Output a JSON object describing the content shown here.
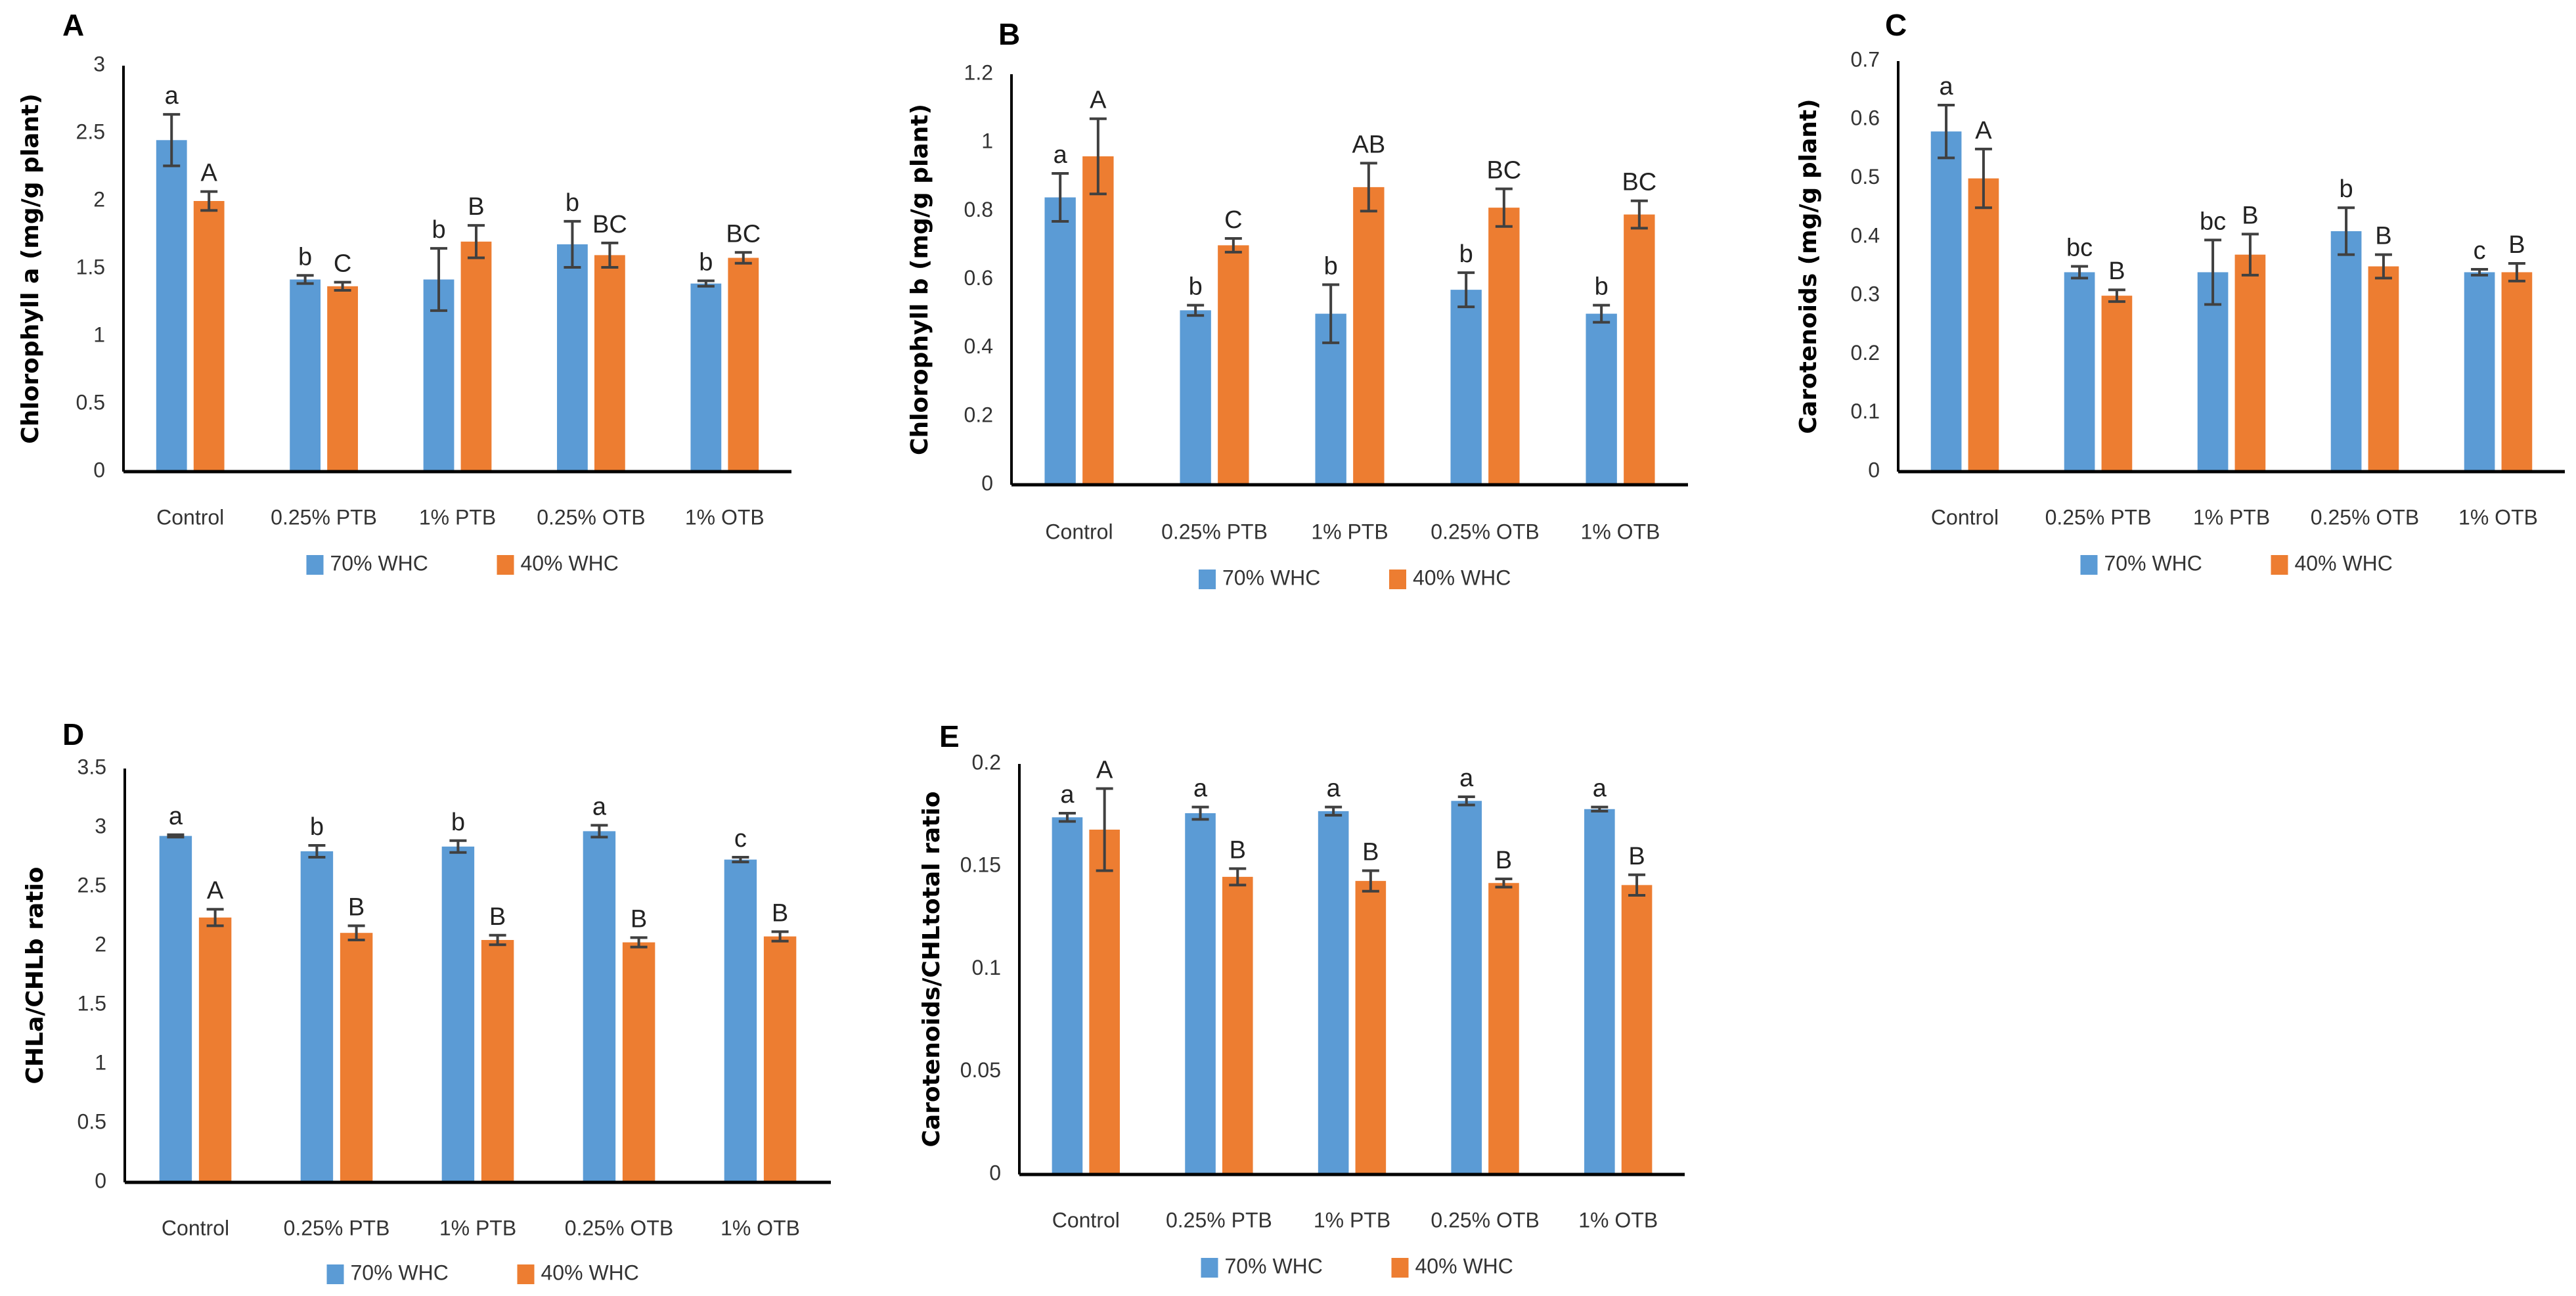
{
  "colors": {
    "series1": "#5B9BD5",
    "series2": "#ED7D31",
    "axis": "#000000",
    "error": "#404040"
  },
  "chart_data": [
    {
      "panel": "A",
      "type": "bar",
      "categories": [
        "Control",
        "0.25% PTB",
        "1% PTB",
        "0.25% OTB",
        "1% OTB"
      ],
      "ylabel": "Chlorophyll a (mg/g plant)",
      "xlabel": "",
      "ylim": [
        0,
        3
      ],
      "ticks": [
        "0",
        "0.5",
        "1",
        "1.5",
        "2",
        "2.5",
        "3"
      ],
      "tick_values": [
        0,
        0.5,
        1,
        1.5,
        2,
        2.5,
        3
      ],
      "legend": "bottom",
      "series": [
        {
          "name": "70% WHC",
          "values": [
            2.45,
            1.42,
            1.42,
            1.68,
            1.39
          ],
          "errors": [
            0.19,
            0.03,
            0.23,
            0.17,
            0.02
          ],
          "letters": [
            "a",
            "b",
            "b",
            "b",
            "b"
          ]
        },
        {
          "name": "40% WHC",
          "values": [
            2.0,
            1.37,
            1.7,
            1.6,
            1.58
          ],
          "errors": [
            0.07,
            0.03,
            0.12,
            0.09,
            0.04
          ],
          "letters": [
            "A",
            "C",
            "B",
            "BC",
            "BC"
          ]
        }
      ]
    },
    {
      "panel": "B",
      "type": "bar",
      "categories": [
        "Control",
        "0.25% PTB",
        "1% PTB",
        "0.25% OTB",
        "1% OTB"
      ],
      "ylabel": "Chlorophyll b (mg/g plant)",
      "xlabel": "",
      "ylim": [
        0,
        1.2
      ],
      "ticks": [
        "0",
        "0.2",
        "0.4",
        "0.6",
        "0.8",
        "1",
        "1.2"
      ],
      "tick_values": [
        0,
        0.2,
        0.4,
        0.6,
        0.8,
        1,
        1.2
      ],
      "legend": "bottom",
      "series": [
        {
          "name": "70% WHC",
          "values": [
            0.84,
            0.51,
            0.5,
            0.57,
            0.5
          ],
          "errors": [
            0.07,
            0.015,
            0.085,
            0.05,
            0.025
          ],
          "letters": [
            "a",
            "b",
            "b",
            "b",
            "b"
          ]
        },
        {
          "name": "40% WHC",
          "values": [
            0.96,
            0.7,
            0.87,
            0.81,
            0.79
          ],
          "errors": [
            0.11,
            0.02,
            0.07,
            0.055,
            0.04
          ],
          "letters": [
            "A",
            "C",
            "AB",
            "BC",
            "BC"
          ]
        }
      ]
    },
    {
      "panel": "C",
      "type": "bar",
      "categories": [
        "Control",
        "0.25% PTB",
        "1% PTB",
        "0.25% OTB",
        "1% OTB"
      ],
      "ylabel": "Carotenoids (mg/g plant)",
      "xlabel": "",
      "ylim": [
        0,
        0.7
      ],
      "ticks": [
        "0",
        "0.1",
        "0.2",
        "0.3",
        "0.4",
        "0.5",
        "0.6",
        "0.7"
      ],
      "tick_values": [
        0,
        0.1,
        0.2,
        0.3,
        0.4,
        0.5,
        0.6,
        0.7
      ],
      "legend": "bottom",
      "series": [
        {
          "name": "70% WHC",
          "values": [
            0.58,
            0.34,
            0.34,
            0.41,
            0.34
          ],
          "errors": [
            0.045,
            0.01,
            0.055,
            0.04,
            0.005
          ],
          "letters": [
            "a",
            "bc",
            "bc",
            "b",
            "c"
          ]
        },
        {
          "name": "40% WHC",
          "values": [
            0.5,
            0.3,
            0.37,
            0.35,
            0.34
          ],
          "errors": [
            0.05,
            0.01,
            0.035,
            0.02,
            0.015
          ],
          "letters": [
            "A",
            "B",
            "B",
            "B",
            "B"
          ]
        }
      ]
    },
    {
      "panel": "D",
      "type": "bar",
      "categories": [
        "Control",
        "0.25% PTB",
        "1% PTB",
        "0.25% OTB",
        "1% OTB"
      ],
      "ylabel": "CHLa/CHLb ratio",
      "xlabel": "",
      "ylim": [
        0,
        3.5
      ],
      "ticks": [
        "0",
        "0.5",
        "1",
        "1.5",
        "2",
        "2.5",
        "3",
        "3.5"
      ],
      "tick_values": [
        0,
        0.5,
        1,
        1.5,
        2,
        2.5,
        3,
        3.5
      ],
      "legend": "bottom",
      "series": [
        {
          "name": "70% WHC",
          "values": [
            2.93,
            2.8,
            2.84,
            2.97,
            2.73
          ],
          "errors": [
            0.01,
            0.05,
            0.05,
            0.05,
            0.02
          ],
          "letters": [
            "a",
            "b",
            "b",
            "a",
            "c"
          ]
        },
        {
          "name": "40% WHC",
          "values": [
            2.24,
            2.11,
            2.05,
            2.03,
            2.08
          ],
          "errors": [
            0.07,
            0.06,
            0.04,
            0.04,
            0.04
          ],
          "letters": [
            "A",
            "B",
            "B",
            "B",
            "B"
          ]
        }
      ]
    },
    {
      "panel": "E",
      "type": "bar",
      "categories": [
        "Control",
        "0.25% PTB",
        "1% PTB",
        "0.25% OTB",
        "1% OTB"
      ],
      "ylabel": "Carotenoids/CHLtotal ratio",
      "xlabel": "",
      "ylim": [
        0,
        0.2
      ],
      "ticks": [
        "0",
        "0.05",
        "0.1",
        "0.15",
        "0.2"
      ],
      "tick_values": [
        0,
        0.05,
        0.1,
        0.15,
        0.2
      ],
      "legend": "bottom",
      "series": [
        {
          "name": "70% WHC",
          "values": [
            0.174,
            0.176,
            0.177,
            0.182,
            0.178
          ],
          "errors": [
            0.002,
            0.003,
            0.002,
            0.002,
            0.001
          ],
          "letters": [
            "a",
            "a",
            "a",
            "a",
            "a"
          ]
        },
        {
          "name": "40% WHC",
          "values": [
            0.168,
            0.145,
            0.143,
            0.142,
            0.141
          ],
          "errors": [
            0.02,
            0.004,
            0.005,
            0.002,
            0.005
          ],
          "letters": [
            "A",
            "B",
            "B",
            "B",
            "B"
          ]
        }
      ]
    }
  ]
}
